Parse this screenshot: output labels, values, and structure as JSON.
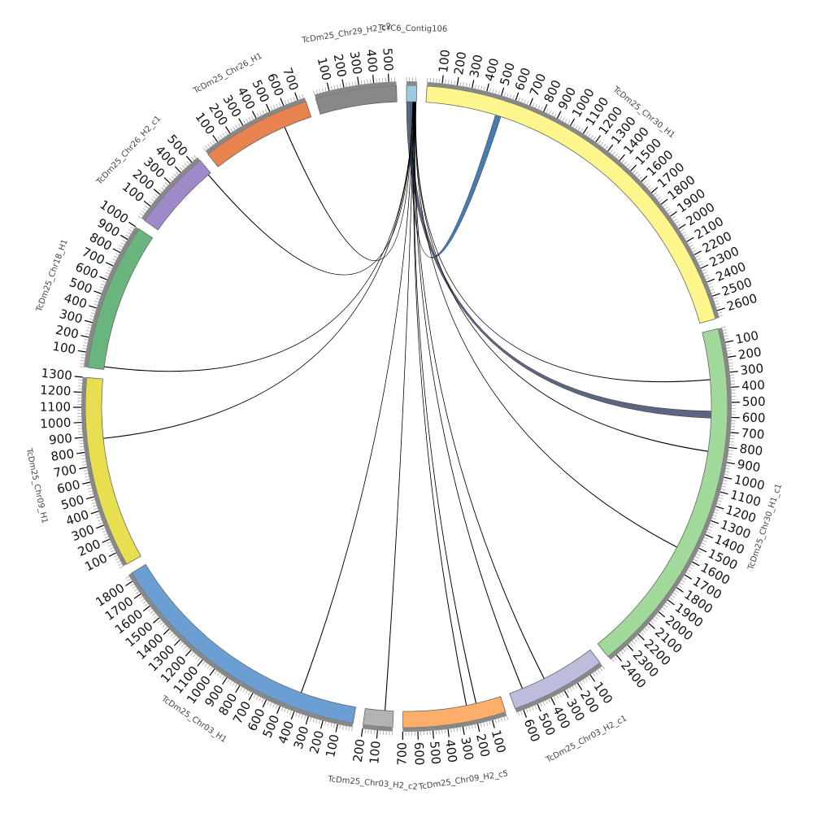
{
  "chart_data": {
    "type": "circos",
    "segments": [
      {
        "name": "TcYC6_Contig106",
        "length": 70,
        "color": "#9ecae1",
        "ticks": []
      },
      {
        "name": "TcDm25_Chr30_H1",
        "length": 2650,
        "color": "#fdf68c",
        "ticks": [
          100,
          200,
          300,
          400,
          500,
          600,
          700,
          800,
          900,
          1000,
          1100,
          1200,
          1300,
          1400,
          1500,
          1600,
          1700,
          1800,
          1900,
          2000,
          2100,
          2200,
          2300,
          2400,
          2500,
          2600
        ]
      },
      {
        "name": "TcDm25_Chr30_H1_c1",
        "length": 2450,
        "color": "#a1d99b",
        "ticks": [
          100,
          200,
          300,
          400,
          500,
          600,
          700,
          800,
          900,
          1000,
          1100,
          1200,
          1300,
          1400,
          1500,
          1600,
          1700,
          1800,
          1900,
          2000,
          2100,
          2200,
          2300,
          2400
        ]
      },
      {
        "name": "TcDm25_Chr03_H2_c1",
        "length": 650,
        "color": "#bcbddc",
        "ticks": [
          100,
          200,
          300,
          400,
          500,
          600
        ]
      },
      {
        "name": "TcDm25_Chr09_H2_c5",
        "length": 700,
        "color": "#fdae6b",
        "ticks": [
          100,
          200,
          300,
          400,
          500,
          600,
          700
        ]
      },
      {
        "name": "TcDm25_Chr03_H2_c2",
        "length": 200,
        "color": "#b3b3b3",
        "ticks": [
          100,
          200
        ]
      },
      {
        "name": "TcDm25_Chr03_H1",
        "length": 1850,
        "color": "#6b9fd3",
        "ticks": [
          100,
          200,
          300,
          400,
          500,
          600,
          700,
          800,
          900,
          1000,
          1100,
          1200,
          1300,
          1400,
          1500,
          1600,
          1700,
          1800
        ]
      },
      {
        "name": "TcDm25_Chr09_H1",
        "length": 1300,
        "color": "#e8df50",
        "ticks": [
          100,
          200,
          300,
          400,
          500,
          600,
          700,
          800,
          900,
          1000,
          1100,
          1200,
          1300
        ]
      },
      {
        "name": "TcDm25_Chr18_H1",
        "length": 1000,
        "color": "#6ab47e",
        "ticks": [
          100,
          200,
          300,
          400,
          500,
          600,
          700,
          800,
          900,
          1000
        ]
      },
      {
        "name": "TcDm25_Chr26_H2_c1",
        "length": 550,
        "color": "#9e8ac8",
        "ticks": [
          100,
          200,
          300,
          400,
          500
        ]
      },
      {
        "name": "TcDm25_Chr26_H1",
        "length": 750,
        "color": "#e8834f",
        "ticks": [
          100,
          200,
          300,
          400,
          500,
          600,
          700
        ]
      },
      {
        "name": "TcDm25_Chr29_H2_c2",
        "length": 550,
        "color": "#888888",
        "ticks": [
          100,
          200,
          300,
          400,
          500
        ]
      }
    ],
    "links": [
      {
        "from": "TcYC6_Contig106",
        "from_range": [
          0,
          30
        ],
        "to": "TcDm25_Chr30_H1_c1",
        "to_range": [
          560,
          610
        ],
        "color": "#555d7a"
      },
      {
        "from": "TcYC6_Contig106",
        "from_range": [
          30,
          42
        ],
        "to": "TcDm25_Chr30_H1",
        "to_range": [
          500,
          540
        ],
        "color": "#3b76ad"
      },
      {
        "from": "TcYC6_Contig106",
        "from_range": [
          43,
          44
        ],
        "to": "TcDm25_Chr26_H1",
        "to_range": [
          548,
          551
        ],
        "color": "#000000"
      },
      {
        "from": "TcYC6_Contig106",
        "from_range": [
          45,
          46
        ],
        "to": "TcDm25_Chr26_H2_c1",
        "to_range": [
          528,
          531
        ],
        "color": "#000000"
      },
      {
        "from": "TcYC6_Contig106",
        "from_range": [
          47,
          48
        ],
        "to": "TcDm25_Chr18_H1",
        "to_range": [
          18,
          21
        ],
        "color": "#000000"
      },
      {
        "from": "TcYC6_Contig106",
        "from_range": [
          49,
          50
        ],
        "to": "TcDm25_Chr09_H1",
        "to_range": [
          878,
          881
        ],
        "color": "#000000"
      },
      {
        "from": "TcYC6_Contig106",
        "from_range": [
          51,
          52
        ],
        "to": "TcDm25_Chr03_H1",
        "to_range": [
          398,
          401
        ],
        "color": "#000000"
      },
      {
        "from": "TcYC6_Contig106",
        "from_range": [
          53,
          54
        ],
        "to": "TcDm25_Chr03_H2_c2",
        "to_range": [
          58,
          61
        ],
        "color": "#000000"
      },
      {
        "from": "TcYC6_Contig106",
        "from_range": [
          55,
          56
        ],
        "to": "TcDm25_Chr09_H2_c5",
        "to_range": [
          248,
          251
        ],
        "color": "#000000"
      },
      {
        "from": "TcYC6_Contig106",
        "from_range": [
          57,
          58
        ],
        "to": "TcDm25_Chr09_H2_c5",
        "to_range": [
          178,
          181
        ],
        "color": "#000000"
      },
      {
        "from": "TcYC6_Contig106",
        "from_range": [
          59,
          60
        ],
        "to": "TcDm25_Chr03_H2_c1",
        "to_range": [
          552,
          555
        ],
        "color": "#000000"
      },
      {
        "from": "TcYC6_Contig106",
        "from_range": [
          61,
          62
        ],
        "to": "TcDm25_Chr03_H2_c1",
        "to_range": [
          383,
          386
        ],
        "color": "#000000"
      },
      {
        "from": "TcYC6_Contig106",
        "from_range": [
          63,
          64
        ],
        "to": "TcDm25_Chr30_H1_c1",
        "to_range": [
          1559,
          1562
        ],
        "color": "#000000"
      },
      {
        "from": "TcYC6_Contig106",
        "from_range": [
          65,
          66
        ],
        "to": "TcDm25_Chr30_H1_c1",
        "to_range": [
          844,
          847
        ],
        "color": "#000000"
      },
      {
        "from": "TcYC6_Contig106",
        "from_range": [
          67,
          68
        ],
        "to": "TcDm25_Chr30_H1_c1",
        "to_range": [
          336,
          339
        ],
        "color": "#000000"
      }
    ]
  }
}
